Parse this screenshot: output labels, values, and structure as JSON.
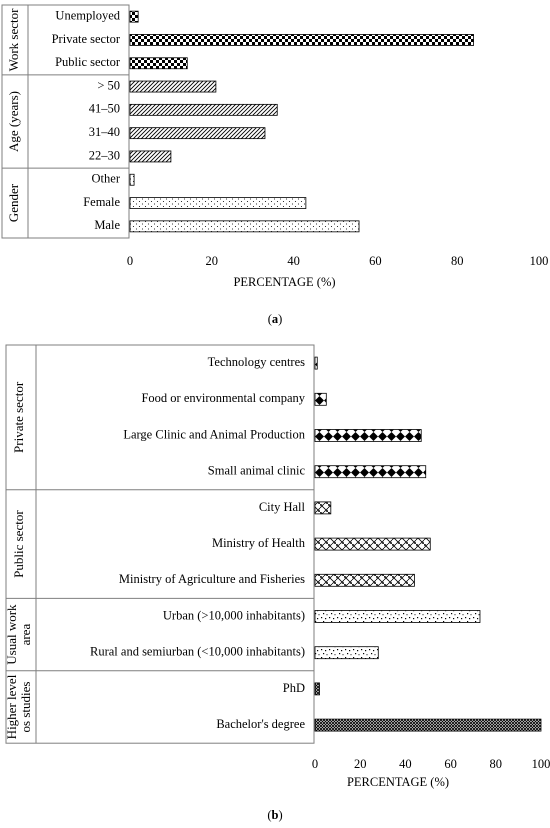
{
  "chart_data": [
    {
      "type": "bar",
      "orientation": "horizontal",
      "panel_label": "a",
      "xlabel": "PERCENTAGE (%)",
      "xlim": [
        0,
        100
      ],
      "xticks": [
        0,
        20,
        40,
        60,
        80,
        100
      ],
      "groups": [
        {
          "name": "Work sector",
          "name_lines": [
            "Work sector"
          ],
          "pattern": "checker",
          "bars": [
            {
              "label": "Unemployed",
              "value": 2
            },
            {
              "label": "Private sector",
              "value": 84
            },
            {
              "label": "Public sector",
              "value": 14
            }
          ]
        },
        {
          "name": "Age (years)",
          "name_lines": [
            "Age (years)"
          ],
          "pattern": "diag",
          "bars": [
            {
              "label": "> 50",
              "value": 21
            },
            {
              "label": "41–50",
              "value": 36
            },
            {
              "label": "31–40",
              "value": 33
            },
            {
              "label": "22–30",
              "value": 10
            }
          ]
        },
        {
          "name": "Gender",
          "name_lines": [
            "Gender"
          ],
          "pattern": "dots",
          "bars": [
            {
              "label": "Other",
              "value": 1
            },
            {
              "label": "Female",
              "value": 43
            },
            {
              "label": "Male",
              "value": 56
            }
          ]
        }
      ]
    },
    {
      "type": "bar",
      "orientation": "horizontal",
      "panel_label": "b",
      "xlabel": "PERCENTAGE (%)",
      "xlim": [
        0,
        100
      ],
      "xticks": [
        0,
        20,
        40,
        60,
        80,
        100
      ],
      "groups": [
        {
          "name": "Private sector",
          "name_lines": [
            "Private sector"
          ],
          "pattern": "diamond",
          "bars": [
            {
              "label": "Technology centres",
              "value": 1
            },
            {
              "label": "Food or environmental company",
              "value": 5
            },
            {
              "label": "Large Clinic and Animal Production",
              "value": 47
            },
            {
              "label": "Small animal clinic",
              "value": 49
            }
          ]
        },
        {
          "name": "Public sector",
          "name_lines": [
            "Public sector"
          ],
          "pattern": "weave",
          "bars": [
            {
              "label": "City Hall",
              "value": 7
            },
            {
              "label": "Ministry of Health",
              "value": 51
            },
            {
              "label": "Ministry of Agriculture and Fisheries",
              "value": 44
            }
          ]
        },
        {
          "name": "Usual work area",
          "name_lines": [
            "Usual work",
            "area"
          ],
          "pattern": "confetti",
          "bars": [
            {
              "label": "Urban (>10,000 inhabitants)",
              "value": 73
            },
            {
              "label": "Rural and semiurban (<10,000 inhabitants)",
              "value": 28
            }
          ]
        },
        {
          "name": "Higher level os studies",
          "name_lines": [
            "Higher level",
            "os studies"
          ],
          "pattern": "crosshatch",
          "bars": [
            {
              "label": "PhD",
              "value": 2
            },
            {
              "label": "Bachelor's degree",
              "value": 100
            }
          ]
        }
      ]
    }
  ]
}
